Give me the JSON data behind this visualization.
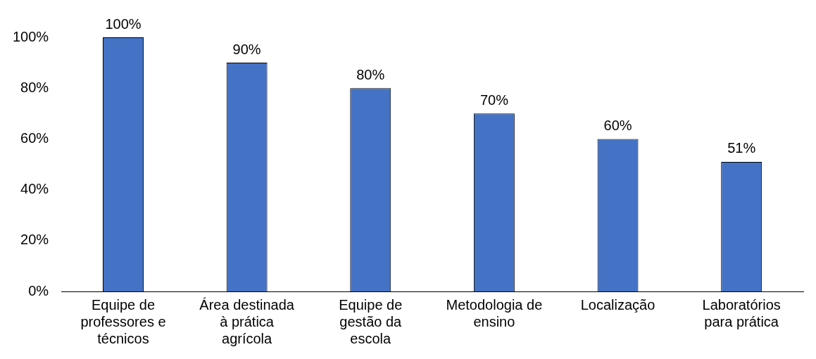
{
  "chart_data": {
    "type": "bar",
    "categories": [
      "Equipe de\nprofessores e\ntécnicos",
      "Área destinada\nà prática\nagrícola",
      "Equipe de\ngestão da\nescola",
      "Metodologia de\nensino",
      "Localização",
      "Laboratórios\npara prática"
    ],
    "values": [
      100,
      90,
      80,
      70,
      60,
      51
    ],
    "value_labels": [
      "100%",
      "90%",
      "80%",
      "70%",
      "60%",
      "51%"
    ],
    "color": "#4472c4",
    "ylim": [
      0,
      100
    ],
    "yticks": [
      {
        "value": 0,
        "label": "0%"
      },
      {
        "value": 20,
        "label": "20%"
      },
      {
        "value": 40,
        "label": "40%"
      },
      {
        "value": 60,
        "label": "60%"
      },
      {
        "value": 80,
        "label": "80%"
      },
      {
        "value": 100,
        "label": "100%"
      }
    ],
    "grid": false,
    "legend": false
  }
}
